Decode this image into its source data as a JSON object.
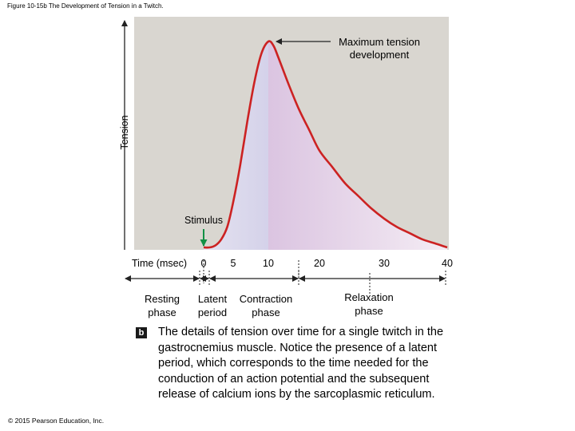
{
  "header": "Figure 10-15b The Development of Tension in a Twitch.",
  "chart_data": {
    "type": "line",
    "title": "",
    "xlabel": "Time (msec)",
    "ylabel": "Tension",
    "x_ticks": [
      0,
      5,
      10,
      20,
      30,
      40
    ],
    "curve": {
      "x": [
        0,
        1,
        2,
        3,
        4,
        5,
        6,
        7,
        8,
        9,
        10,
        11,
        12,
        14,
        16,
        18,
        20,
        22,
        24,
        26,
        28,
        30,
        32,
        34,
        36,
        38,
        40
      ],
      "y": [
        0,
        0,
        0.01,
        0.04,
        0.1,
        0.22,
        0.4,
        0.61,
        0.8,
        0.94,
        1.0,
        0.98,
        0.92,
        0.79,
        0.67,
        0.57,
        0.47,
        0.39,
        0.31,
        0.25,
        0.19,
        0.14,
        0.1,
        0.07,
        0.04,
        0.02,
        0.0
      ]
    },
    "annotations": {
      "peak": "Maximum tension development",
      "stimulus": "Stimulus"
    },
    "phases": [
      {
        "label_lines": [
          "Resting",
          "phase"
        ]
      },
      {
        "label_lines": [
          "Latent",
          "period"
        ]
      },
      {
        "label_lines": [
          "Contraction",
          "phase"
        ]
      },
      {
        "label_lines": [
          "Relaxation",
          "phase"
        ]
      }
    ],
    "colors": {
      "background": "#d9d6d0",
      "curve": "#cc2222",
      "contraction_fill": "#a8a4d4",
      "relaxation_fill": "#dcc4e0",
      "stimulus_arrow": "#129045"
    },
    "grid": false
  },
  "caption": {
    "badge": "b",
    "text": "The details of tension over time for a single twitch in the gastrocnemius muscle. Notice the presence of a latent period, which corresponds to the time needed for the conduction of an action potential and the subsequent release of calcium ions by the sarcoplasmic reticulum."
  },
  "copyright": "© 2015 Pearson Education, Inc."
}
